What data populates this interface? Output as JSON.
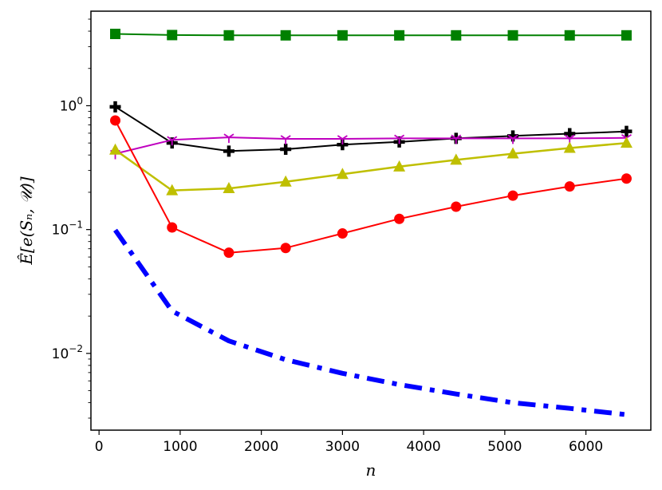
{
  "chart_data": {
    "type": "line",
    "xlabel": "n",
    "ylabel": "Ê[e(Sₙ, 𝒰)]",
    "yscale": "log",
    "xlim": [
      -100,
      6800
    ],
    "ylim": [
      0.0024,
      5.8
    ],
    "grid": false,
    "x": [
      200,
      900,
      1600,
      2300,
      3000,
      3700,
      4400,
      5100,
      5800,
      6500
    ],
    "x_ticks": [
      0,
      1000,
      2000,
      3000,
      4000,
      5000,
      6000
    ],
    "x_tick_labels": [
      "0",
      "1000",
      "2000",
      "3000",
      "4000",
      "5000",
      "6000"
    ],
    "y_ticks": [
      0.01,
      0.1,
      1
    ],
    "y_tick_labels": [
      {
        "base": "10",
        "exp": "−2"
      },
      {
        "base": "10",
        "exp": "−1"
      },
      {
        "base": "10",
        "exp": "0"
      }
    ],
    "series": [
      {
        "color": "#008000",
        "marker": "square",
        "width": 2,
        "dash": "",
        "values": [
          3.8,
          3.72,
          3.7,
          3.7,
          3.7,
          3.7,
          3.7,
          3.7,
          3.7,
          3.7
        ]
      },
      {
        "color": "#000000",
        "marker": "plus",
        "width": 2,
        "dash": "",
        "values": [
          0.98,
          0.5,
          0.43,
          0.445,
          0.485,
          0.51,
          0.545,
          0.57,
          0.595,
          0.62
        ]
      },
      {
        "color": "#bf00bf",
        "marker": "tri_down",
        "width": 2,
        "dash": "",
        "values": [
          0.41,
          0.53,
          0.555,
          0.54,
          0.54,
          0.545,
          0.545,
          0.545,
          0.545,
          0.55
        ]
      },
      {
        "color": "#bfbf00",
        "marker": "triangle",
        "width": 2.5,
        "dash": "",
        "values": [
          0.44,
          0.207,
          0.215,
          0.243,
          0.28,
          0.322,
          0.365,
          0.41,
          0.455,
          0.5
        ]
      },
      {
        "color": "#ff0000",
        "marker": "circle",
        "width": 2,
        "dash": "",
        "values": [
          0.76,
          0.104,
          0.065,
          0.071,
          0.093,
          0.122,
          0.153,
          0.188,
          0.223,
          0.258
        ]
      },
      {
        "color": "#0000ff",
        "marker": "none",
        "width": 6,
        "dash": "22 10 6 10",
        "values": [
          0.099,
          0.022,
          0.0126,
          0.0089,
          0.0069,
          0.0056,
          0.0047,
          0.004,
          0.0036,
          0.0032
        ]
      }
    ]
  }
}
